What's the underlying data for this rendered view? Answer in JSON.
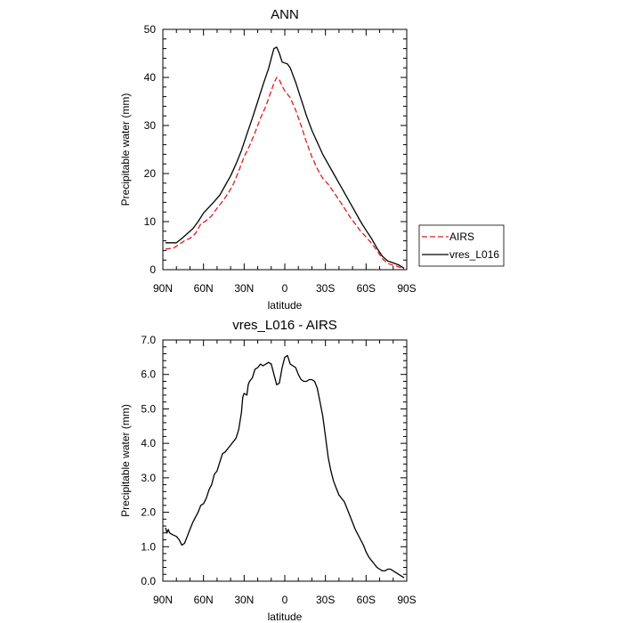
{
  "chart_data": [
    {
      "type": "line",
      "title": "ANN",
      "xlabel": "latitude",
      "ylabel": "Precipitable water (mm)",
      "xlim": [
        90,
        -90
      ],
      "ylim": [
        0,
        50
      ],
      "x_ticks": [
        90,
        60,
        30,
        0,
        -30,
        -60,
        -90
      ],
      "x_tick_labels": [
        "90N",
        "60N",
        "30N",
        "0",
        "30S",
        "60S",
        "90S"
      ],
      "y_ticks": [
        0,
        10,
        20,
        30,
        40,
        50
      ],
      "y_tick_labels": [
        "0",
        "10",
        "20",
        "30",
        "40",
        "50"
      ],
      "legend_position": "right",
      "series": [
        {
          "name": "AIRS",
          "color": "#e41a1c",
          "dash": "dashed",
          "x": [
            88,
            82,
            78,
            74,
            70,
            66,
            62,
            58,
            54,
            50,
            46,
            42,
            38,
            34,
            30,
            26,
            22,
            18,
            14,
            10,
            8,
            6,
            4,
            2,
            0,
            -2,
            -4,
            -8,
            -12,
            -16,
            -20,
            -24,
            -28,
            -32,
            -36,
            -40,
            -44,
            -48,
            -52,
            -56,
            -60,
            -64,
            -68,
            -72,
            -76,
            -80,
            -84,
            -88
          ],
          "y": [
            4.3,
            4.5,
            5.3,
            6.0,
            6.5,
            7.5,
            9.5,
            10.2,
            11.2,
            12.8,
            14.2,
            15.8,
            17.8,
            20.5,
            23.5,
            25.8,
            28.5,
            31.5,
            34.0,
            37.2,
            38.8,
            40.0,
            39.5,
            38.2,
            37.2,
            36.5,
            35.8,
            33.2,
            30.0,
            26.5,
            23.5,
            21.0,
            19.0,
            17.8,
            16.2,
            14.5,
            12.8,
            11.0,
            9.5,
            8.0,
            6.8,
            5.5,
            4.0,
            2.3,
            1.3,
            0.9,
            0.6,
            0.1
          ]
        },
        {
          "name": "vres_L016",
          "color": "#000000",
          "dash": "solid",
          "x": [
            88,
            84,
            80,
            76,
            72,
            68,
            64,
            60,
            56,
            52,
            48,
            44,
            40,
            36,
            32,
            28,
            24,
            20,
            16,
            12,
            10,
            8,
            6,
            4,
            2,
            0,
            -2,
            -4,
            -8,
            -12,
            -16,
            -20,
            -24,
            -28,
            -32,
            -36,
            -40,
            -44,
            -48,
            -52,
            -56,
            -60,
            -64,
            -68,
            -72,
            -76,
            -80,
            -84,
            -88
          ],
          "y": [
            5.6,
            5.6,
            5.6,
            6.5,
            7.5,
            8.5,
            10.0,
            11.8,
            13.0,
            14.2,
            15.5,
            17.5,
            19.5,
            22.0,
            24.8,
            28.2,
            31.5,
            35.0,
            38.5,
            41.8,
            44.0,
            46.0,
            46.3,
            45.0,
            43.2,
            43.0,
            42.8,
            42.0,
            39.0,
            35.5,
            32.0,
            29.0,
            26.5,
            24.0,
            22.0,
            20.0,
            18.0,
            16.0,
            14.0,
            12.0,
            10.0,
            8.2,
            6.5,
            4.5,
            2.8,
            1.8,
            1.4,
            1.0,
            0.3
          ]
        }
      ]
    },
    {
      "type": "line",
      "title": "vres_L016 - AIRS",
      "xlabel": "latitude",
      "ylabel": "Precipitable water (mm)",
      "xlim": [
        90,
        -90
      ],
      "ylim": [
        0,
        7
      ],
      "x_ticks": [
        90,
        60,
        30,
        0,
        -30,
        -60,
        -90
      ],
      "x_tick_labels": [
        "90N",
        "60N",
        "30N",
        "0",
        "30S",
        "60S",
        "90S"
      ],
      "y_ticks": [
        0,
        1,
        2,
        3,
        4,
        5,
        6,
        7
      ],
      "y_tick_labels": [
        "0.0",
        "1.0",
        "2.0",
        "3.0",
        "4.0",
        "5.0",
        "6.0",
        "7.0"
      ],
      "series": [
        {
          "color": "#000000",
          "dash": "solid",
          "x": [
            88,
            87,
            86,
            85,
            83,
            80,
            78,
            76,
            74,
            72,
            70,
            68,
            66,
            64,
            62,
            60,
            58,
            56,
            54,
            52,
            50,
            48,
            46,
            44,
            42,
            40,
            38,
            36,
            34,
            32,
            31,
            30,
            28,
            27,
            26,
            24,
            22,
            20,
            18,
            16,
            14,
            12,
            10,
            8,
            6,
            4,
            2,
            0,
            -2,
            -4,
            -6,
            -8,
            -10,
            -12,
            -14,
            -16,
            -18,
            -20,
            -22,
            -24,
            -26,
            -28,
            -30,
            -32,
            -34,
            -36,
            -38,
            -40,
            -44,
            -48,
            -52,
            -56,
            -58,
            -60,
            -62,
            -64,
            -66,
            -68,
            -70,
            -72,
            -74,
            -76,
            -78,
            -80,
            -82,
            -84,
            -86,
            -88
          ],
          "y": [
            1.55,
            1.4,
            1.5,
            1.4,
            1.35,
            1.3,
            1.2,
            1.05,
            1.1,
            1.3,
            1.5,
            1.7,
            1.85,
            2.0,
            2.2,
            2.25,
            2.4,
            2.65,
            2.8,
            3.1,
            3.2,
            3.45,
            3.7,
            3.75,
            3.85,
            3.95,
            4.05,
            4.15,
            4.4,
            4.9,
            5.35,
            5.45,
            5.4,
            5.7,
            5.8,
            5.9,
            6.15,
            6.2,
            6.3,
            6.25,
            6.3,
            6.35,
            6.3,
            6.0,
            5.7,
            5.75,
            6.2,
            6.5,
            6.55,
            6.3,
            6.25,
            6.2,
            6.0,
            5.85,
            5.8,
            5.8,
            5.85,
            5.85,
            5.8,
            5.6,
            5.2,
            4.8,
            4.2,
            3.6,
            3.2,
            2.9,
            2.7,
            2.5,
            2.3,
            1.9,
            1.5,
            1.2,
            1.05,
            0.85,
            0.7,
            0.6,
            0.5,
            0.4,
            0.35,
            0.3,
            0.3,
            0.35,
            0.35,
            0.3,
            0.25,
            0.2,
            0.15,
            0.1
          ]
        }
      ]
    }
  ]
}
